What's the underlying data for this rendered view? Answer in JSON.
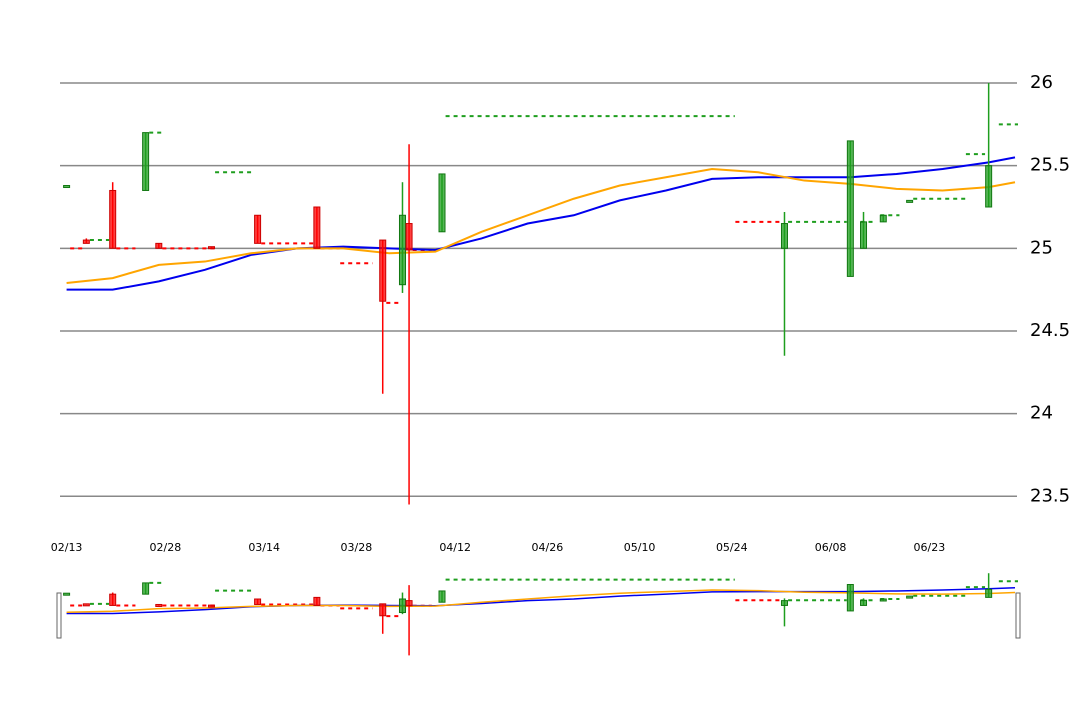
{
  "chart_data": {
    "type": "candlestick",
    "ylim": [
      23.4,
      26.1
    ],
    "yticks": [
      23.5,
      24,
      24.5,
      25,
      25.5,
      26
    ],
    "xlim": [
      "02/12",
      "07/06"
    ],
    "xticks": [
      "02/13",
      "02/28",
      "03/14",
      "03/28",
      "04/12",
      "04/26",
      "05/10",
      "05/24",
      "06/08",
      "06/23"
    ],
    "grid": true,
    "up_color": "#1e9e1e",
    "down_color": "#ff0000",
    "candles": {
      "x": [
        "02/13",
        "02/16",
        "02/20",
        "02/25",
        "02/27",
        "03/06",
        "03/13",
        "03/22",
        "04/01",
        "04/04",
        "04/05",
        "04/10",
        "06/01",
        "06/11",
        "06/13",
        "06/16",
        "06/20",
        "07/02"
      ],
      "open": [
        25.38,
        25.05,
        25.35,
        25.35,
        25.03,
        25.01,
        25.2,
        25.25,
        25.05,
        24.78,
        25.15,
        25.1,
        25.0,
        24.83,
        25.0,
        25.16,
        25.29,
        25.25
      ],
      "high": [
        25.38,
        25.06,
        25.4,
        25.7,
        25.03,
        25.01,
        25.2,
        25.25,
        25.05,
        25.4,
        25.63,
        25.45,
        25.22,
        25.65,
        25.22,
        25.2,
        25.29,
        26.0
      ],
      "low": [
        25.38,
        25.03,
        25.0,
        25.35,
        25.0,
        25.0,
        25.03,
        25.0,
        24.12,
        24.73,
        23.45,
        25.1,
        24.35,
        24.83,
        25.0,
        25.16,
        25.29,
        25.25
      ],
      "close": [
        25.38,
        25.03,
        25.0,
        25.7,
        25.0,
        25.0,
        25.03,
        25.0,
        24.68,
        25.2,
        24.99,
        25.45,
        25.15,
        25.65,
        25.16,
        25.2,
        25.29,
        25.5
      ]
    },
    "levels": [
      {
        "start": "02/14",
        "end": "02/15",
        "value": 25.0,
        "color": "#ff0000"
      },
      {
        "start": "02/17",
        "end": "02/19",
        "value": 25.05,
        "color": "#1e9e1e"
      },
      {
        "start": "02/21",
        "end": "02/23",
        "value": 25.0,
        "color": "#ff0000"
      },
      {
        "start": "02/26",
        "end": "02/27",
        "value": 25.7,
        "color": "#1e9e1e"
      },
      {
        "start": "02/28",
        "end": "03/06",
        "value": 25.0,
        "color": "#ff0000"
      },
      {
        "start": "03/07",
        "end": "03/12",
        "value": 25.46,
        "color": "#1e9e1e"
      },
      {
        "start": "03/14",
        "end": "03/21",
        "value": 25.03,
        "color": "#ff0000"
      },
      {
        "start": "03/23",
        "end": "03/25",
        "value": 25.0,
        "color": "#ff0000"
      },
      {
        "start": "03/26",
        "end": "03/30",
        "value": 24.91,
        "color": "#ff0000"
      },
      {
        "start": "04/02",
        "end": "04/03",
        "value": 24.67,
        "color": "#ff0000"
      },
      {
        "start": "04/06",
        "end": "04/08",
        "value": 24.99,
        "color": "#ff0000"
      },
      {
        "start": "04/11",
        "end": "05/24",
        "value": 25.8,
        "color": "#1e9e1e"
      },
      {
        "start": "05/25",
        "end": "05/31",
        "value": 25.16,
        "color": "#ff0000"
      },
      {
        "start": "06/02",
        "end": "06/10",
        "value": 25.16,
        "color": "#1e9e1e"
      },
      {
        "start": "06/13",
        "end": "06/14",
        "value": 25.16,
        "color": "#1e9e1e"
      },
      {
        "start": "06/16",
        "end": "06/18",
        "value": 25.2,
        "color": "#1e9e1e"
      },
      {
        "start": "06/21",
        "end": "06/28",
        "value": 25.3,
        "color": "#1e9e1e"
      },
      {
        "start": "06/29",
        "end": "07/01",
        "value": 25.57,
        "color": "#1e9e1e"
      },
      {
        "start": "07/04",
        "end": "07/06",
        "value": 25.75,
        "color": "#1e9e1e"
      }
    ],
    "x": [
      "02/13",
      "02/20",
      "02/27",
      "03/05",
      "03/12",
      "03/19",
      "03/26",
      "04/02",
      "04/09",
      "04/16",
      "04/23",
      "04/30",
      "05/07",
      "05/14",
      "05/21",
      "05/28",
      "06/04",
      "06/11",
      "06/18",
      "06/25",
      "07/02",
      "07/06"
    ],
    "series": [
      {
        "color": "#0000ee",
        "values": [
          24.75,
          24.75,
          24.8,
          24.87,
          24.96,
          25.0,
          25.01,
          25.0,
          24.99,
          25.06,
          25.15,
          25.2,
          25.29,
          25.35,
          25.42,
          25.43,
          25.43,
          25.43,
          25.45,
          25.48,
          25.52,
          25.55
        ]
      },
      {
        "color": "#ffa500",
        "values": [
          24.79,
          24.82,
          24.9,
          24.92,
          24.97,
          25.0,
          25.0,
          24.97,
          24.98,
          25.1,
          25.2,
          25.3,
          25.38,
          25.43,
          25.48,
          25.46,
          25.41,
          25.39,
          25.36,
          25.35,
          25.37,
          25.4
        ]
      }
    ]
  }
}
